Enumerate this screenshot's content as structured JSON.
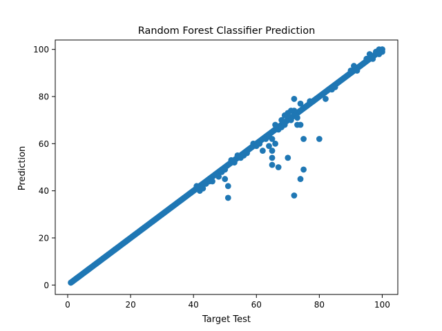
{
  "chart_data": {
    "type": "scatter",
    "title": "Random Forest Classifier Prediction",
    "xlabel": "Target Test",
    "ylabel": "Prediction",
    "xlim": [
      -3.95,
      104.95
    ],
    "ylim": [
      -4.0,
      104.0
    ],
    "xticks": [
      0,
      20,
      40,
      60,
      80,
      100
    ],
    "yticks": [
      0,
      20,
      40,
      60,
      80,
      100
    ],
    "grid": false,
    "marker_color": "#1f77b4",
    "diagonal": {
      "description_of_points": "dense cloud of points along y = x from 1 to 100",
      "x_start": 1,
      "x_end": 100,
      "step": 0.2
    },
    "series": [
      {
        "values": [
          [
            41,
            42
          ],
          [
            42,
            40
          ],
          [
            43,
            41
          ],
          [
            44,
            43
          ],
          [
            45,
            44
          ],
          [
            46,
            44
          ],
          [
            47,
            47
          ],
          [
            48,
            46
          ],
          [
            49,
            48
          ],
          [
            50,
            49
          ],
          [
            50,
            45
          ],
          [
            51,
            42
          ],
          [
            51,
            37
          ],
          [
            52,
            53
          ],
          [
            53,
            52
          ],
          [
            54,
            55
          ],
          [
            55,
            54
          ],
          [
            56,
            55
          ],
          [
            57,
            56
          ],
          [
            58,
            58
          ],
          [
            59,
            60
          ],
          [
            60,
            59
          ],
          [
            61,
            60
          ],
          [
            62,
            62
          ],
          [
            62,
            57
          ],
          [
            63,
            62
          ],
          [
            64,
            63
          ],
          [
            64,
            59
          ],
          [
            65,
            62
          ],
          [
            65,
            57
          ],
          [
            65,
            54
          ],
          [
            65,
            51
          ],
          [
            66,
            60
          ],
          [
            67,
            50
          ],
          [
            67,
            66
          ],
          [
            68,
            67
          ],
          [
            69,
            68
          ],
          [
            70,
            73
          ],
          [
            70,
            54
          ],
          [
            71,
            70
          ],
          [
            72,
            79
          ],
          [
            72,
            74
          ],
          [
            72,
            38
          ],
          [
            73,
            68
          ],
          [
            73,
            71
          ],
          [
            74,
            77
          ],
          [
            74,
            68
          ],
          [
            74,
            45
          ],
          [
            75,
            62
          ],
          [
            75,
            49
          ],
          [
            76,
            76
          ],
          [
            77,
            78
          ],
          [
            78,
            78
          ],
          [
            79,
            79
          ],
          [
            80,
            62
          ],
          [
            82,
            79
          ],
          [
            83,
            83
          ],
          [
            84,
            83
          ],
          [
            85,
            84
          ],
          [
            86,
            86
          ],
          [
            88,
            88
          ],
          [
            89,
            89
          ],
          [
            90,
            91
          ],
          [
            91,
            93
          ],
          [
            92,
            91
          ],
          [
            93,
            93
          ],
          [
            94,
            94
          ],
          [
            95,
            96
          ],
          [
            96,
            98
          ],
          [
            97,
            96
          ],
          [
            98,
            99
          ],
          [
            99,
            100
          ],
          [
            99,
            98
          ],
          [
            100,
            99
          ],
          [
            100,
            100
          ],
          [
            70,
            72
          ],
          [
            71,
            74
          ],
          [
            69,
            72
          ],
          [
            68,
            70
          ],
          [
            66,
            68
          ]
        ]
      }
    ]
  }
}
